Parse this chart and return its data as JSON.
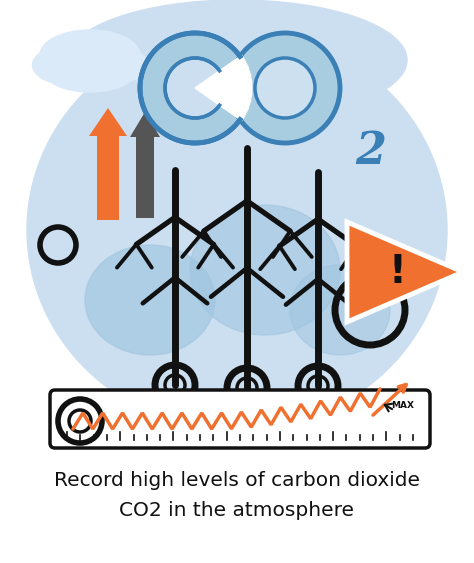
{
  "bg": "#ffffff",
  "blob_light": "#ccdff0",
  "blob_mid": "#9fc5e0",
  "blob_dark": "#7bafd4",
  "orange": "#f07030",
  "gray_dark": "#555555",
  "black": "#111111",
  "co2_outer": "#3a7fb5",
  "co2_fill": "#a8cce0",
  "co2_inner_bg": "#cce0f0",
  "warn_orange": "#f07030",
  "warn_white": "#ffffff",
  "ruler_bg": "#ffffff",
  "title1": "Record high levels of carbon dioxide",
  "title2": "CO2 in the atmosphere",
  "title_size": 14.5,
  "max_text": "MAX",
  "cloud_color": "#daeaf8"
}
